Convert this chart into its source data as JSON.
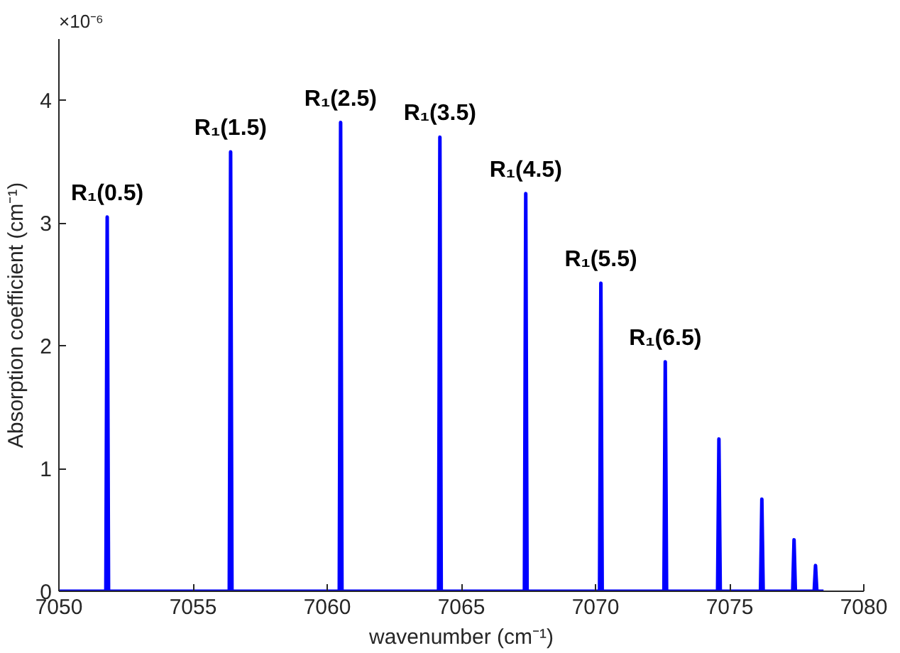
{
  "chart_data": {
    "type": "line",
    "xlabel": "wavenumber (cm⁻¹)",
    "ylabel": "Absorption coefficient (cm⁻¹)",
    "x": [
      7050,
      7051.75,
      7051.8,
      7051.85,
      7056.35,
      7056.4,
      7056.45,
      7060.45,
      7060.5,
      7060.55,
      7064.15,
      7064.2,
      7064.25,
      7067.35,
      7067.4,
      7067.45,
      7070.15,
      7070.2,
      7070.25,
      7072.55,
      7072.6,
      7072.65,
      7074.55,
      7074.6,
      7074.65,
      7076.15,
      7076.2,
      7076.25,
      7077.35,
      7077.4,
      7077.45,
      7078.15,
      7078.2,
      7078.25,
      7078.5
    ],
    "series": [
      {
        "color": "#0000ff",
        "values": [
          0,
          0,
          3.05,
          0,
          0,
          3.58,
          0,
          0,
          3.82,
          0,
          0,
          3.7,
          0,
          0,
          3.24,
          0,
          0,
          2.51,
          0,
          0,
          1.87,
          0,
          0,
          1.24,
          0,
          0,
          0.75,
          0,
          0,
          0.42,
          0,
          0,
          0.21,
          0,
          0
        ]
      }
    ],
    "xlim": [
      7050,
      7080
    ],
    "xticks": [
      7050,
      7055,
      7060,
      7065,
      7070,
      7075,
      7080
    ],
    "ylim": [
      0,
      4.5
    ],
    "yticks": [
      0,
      1,
      2,
      3,
      4
    ],
    "grid": false,
    "marker": "none",
    "line_style": "solid",
    "annotations": [
      "×10⁻⁶",
      {
        "text": "R₁(0.5)",
        "x": 7051.8,
        "y": 3.05
      },
      {
        "text": "R₁(1.5)",
        "x": 7056.4,
        "y": 3.58
      },
      {
        "text": "R₁(2.5)",
        "x": 7060.5,
        "y": 3.82
      },
      {
        "text": "R₁(3.5)",
        "x": 7064.2,
        "y": 3.7
      },
      {
        "text": "R₁(4.5)",
        "x": 7067.4,
        "y": 3.24
      },
      {
        "text": "R₁(5.5)",
        "x": 7070.2,
        "y": 2.51
      },
      {
        "text": "R₁(6.5)",
        "x": 7072.6,
        "y": 1.87
      }
    ]
  }
}
